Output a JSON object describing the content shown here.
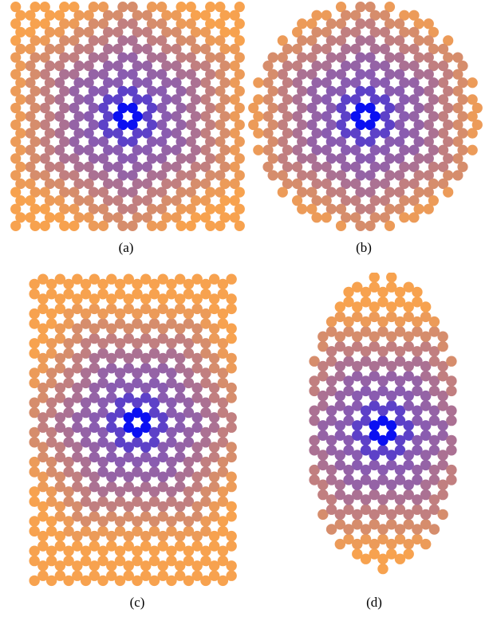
{
  "panels": [
    {
      "id": "a",
      "label": "(a)",
      "shape": "square",
      "rings_visible": 22
    },
    {
      "id": "b",
      "label": "(b)",
      "shape": "circle",
      "rings_visible": 14
    },
    {
      "id": "c",
      "label": "(c)",
      "shape": "rectangle",
      "rings_visible": 22
    },
    {
      "id": "d",
      "label": "(d)",
      "shape": "ellipse",
      "rings_visible": 14
    }
  ],
  "colors": {
    "center": "#0b10f2",
    "mid": "#8a5cb0",
    "outer": "#f7a24f"
  },
  "lattice": "honeycomb"
}
